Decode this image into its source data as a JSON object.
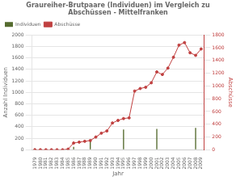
{
  "chart_data": {
    "type": "bar",
    "title": "Graureiher-Brutpaare (Individuen) im Vergleich zu\nAbschüssen - Mittelfranken",
    "xlabel": "Jahr",
    "ylabel": "Anzahl Individuen",
    "y2label": "Abschüsse",
    "series": [
      {
        "name": "Individuen",
        "type": "bar",
        "color": "#556B2F",
        "x": [
          1979,
          1983,
          1986,
          1989,
          1995,
          2001,
          2008
        ],
        "values": [
          22,
          16,
          52,
          174,
          352,
          362,
          382
        ]
      },
      {
        "name": "Abschüsse",
        "type": "line",
        "color": "#C04040",
        "marker": "circle",
        "axis": "y2",
        "x": [
          1979,
          1980,
          1981,
          1982,
          1983,
          1984,
          1985,
          1986,
          1987,
          1988,
          1989,
          1990,
          1991,
          1992,
          1993,
          1994,
          1995,
          1996,
          1997,
          1998,
          1999,
          2000,
          2001,
          2002,
          2003,
          2004,
          2005,
          2006,
          2007,
          2008,
          2009
        ],
        "values": [
          0,
          0,
          0,
          0,
          0,
          0,
          10,
          106,
          120,
          133,
          145,
          200,
          260,
          295,
          420,
          460,
          490,
          500,
          920,
          960,
          980,
          1050,
          1220,
          1180,
          1280,
          1450,
          1640,
          1680,
          1520,
          1480,
          1580
        ]
      }
    ],
    "xlim": [
      1978.5,
      2009.5
    ],
    "xticks": [
      1979,
      1980,
      1981,
      1982,
      1983,
      1984,
      1985,
      1986,
      1987,
      1988,
      1989,
      1990,
      1991,
      1992,
      1993,
      1994,
      1995,
      1996,
      1997,
      1998,
      1999,
      2000,
      2001,
      2002,
      2003,
      2004,
      2005,
      2006,
      2007,
      2008,
      2009
    ],
    "ylim": [
      0,
      2000
    ],
    "yticks": [
      0,
      200,
      400,
      600,
      800,
      1000,
      1200,
      1400,
      1600,
      1800,
      2000
    ],
    "y2lim": [
      0,
      1800
    ],
    "y2ticks": [
      0,
      200,
      400,
      600,
      800,
      1000,
      1200,
      1400,
      1600,
      1800
    ],
    "grid": true,
    "legend": "upper left"
  }
}
